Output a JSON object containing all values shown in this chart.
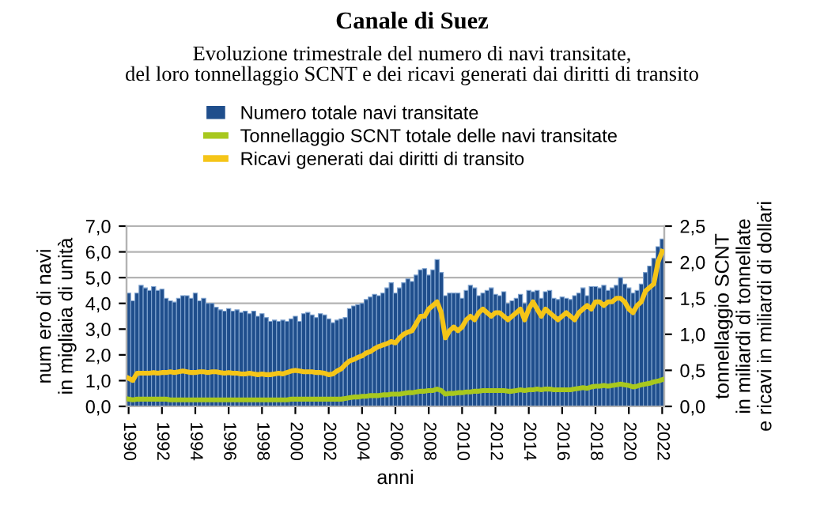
{
  "chart_data": {
    "type": "bar",
    "title": "Canale di Suez",
    "subtitle": "Evoluzione trimestrale del numero di navi transitate,\ndel loro tonnellaggio SCNT e dei ricavi generati dai diritti di transito",
    "xlabel": "anni",
    "ylabel": "num ero di navi\nin migliaia di unità",
    "y2label": "tonnellaggio SCNT\nin miliardi di tonnellate\ne ricavi in miliardi di dollari",
    "categories": [
      "1990",
      null,
      null,
      null,
      null,
      null,
      null,
      null,
      "1992",
      null,
      null,
      null,
      null,
      null,
      null,
      null,
      "1994",
      null,
      null,
      null,
      null,
      null,
      null,
      null,
      "1996",
      null,
      null,
      null,
      null,
      null,
      null,
      null,
      "1998",
      null,
      null,
      null,
      null,
      null,
      null,
      null,
      "2000",
      null,
      null,
      null,
      null,
      null,
      null,
      null,
      "2002",
      null,
      null,
      null,
      null,
      null,
      null,
      null,
      "2004",
      null,
      null,
      null,
      null,
      null,
      null,
      null,
      "2006",
      null,
      null,
      null,
      null,
      null,
      null,
      null,
      "2008",
      null,
      null,
      null,
      null,
      null,
      null,
      null,
      "2010",
      null,
      null,
      null,
      null,
      null,
      null,
      null,
      "2012",
      null,
      null,
      null,
      null,
      null,
      null,
      null,
      "2014",
      null,
      null,
      null,
      null,
      null,
      null,
      null,
      "2016",
      null,
      null,
      null,
      null,
      null,
      null,
      null,
      "2018",
      null,
      null,
      null,
      null,
      null,
      null,
      null,
      "2020",
      null,
      null,
      null,
      null,
      null,
      null,
      null,
      "2022"
    ],
    "series": [
      {
        "name": "Numero totale navi transitate",
        "color": "#1f4e8c",
        "values": [
          4.4,
          4.1,
          4.4,
          4.7,
          4.6,
          4.5,
          4.65,
          4.5,
          4.55,
          4.2,
          4.1,
          4.05,
          4.2,
          4.3,
          4.3,
          4.2,
          4.4,
          4.1,
          4.2,
          4.0,
          4.0,
          3.85,
          3.75,
          3.7,
          3.8,
          3.7,
          3.75,
          3.65,
          3.7,
          3.6,
          3.7,
          3.5,
          3.6,
          3.45,
          3.3,
          3.35,
          3.3,
          3.35,
          3.3,
          3.4,
          3.5,
          3.3,
          3.6,
          3.65,
          3.55,
          3.45,
          3.6,
          3.55,
          3.4,
          3.25,
          3.35,
          3.4,
          3.45,
          3.8,
          3.9,
          3.95,
          4.0,
          4.15,
          4.25,
          4.35,
          4.3,
          4.4,
          4.6,
          4.8,
          4.4,
          4.6,
          4.8,
          4.95,
          4.85,
          5.1,
          5.3,
          5.35,
          5.1,
          5.3,
          5.7,
          5.2,
          4.3,
          4.4,
          4.4,
          4.4,
          4.2,
          4.5,
          4.7,
          4.6,
          4.3,
          4.4,
          4.5,
          4.6,
          4.35,
          4.3,
          4.45,
          4.0,
          4.1,
          4.2,
          4.35,
          4.0,
          4.5,
          4.45,
          4.5,
          4.2,
          4.45,
          4.5,
          4.2,
          4.15,
          4.25,
          4.2,
          4.15,
          4.3,
          4.4,
          4.6,
          4.3,
          4.65,
          4.65,
          4.6,
          4.7,
          4.5,
          4.6,
          4.7,
          5.0,
          4.75,
          4.6,
          4.4,
          4.5,
          4.75,
          5.2,
          5.45,
          5.75,
          6.2,
          6.5
        ]
      },
      {
        "name": "Tonnellaggio SCNT totale delle navi transitate",
        "type": "line",
        "axis": "y2",
        "color": "#a8c81e",
        "values": [
          0.1,
          0.09,
          0.1,
          0.1,
          0.1,
          0.1,
          0.1,
          0.1,
          0.1,
          0.1,
          0.09,
          0.09,
          0.09,
          0.09,
          0.09,
          0.09,
          0.09,
          0.09,
          0.09,
          0.09,
          0.09,
          0.09,
          0.09,
          0.09,
          0.09,
          0.09,
          0.09,
          0.09,
          0.09,
          0.09,
          0.09,
          0.09,
          0.09,
          0.09,
          0.09,
          0.09,
          0.09,
          0.09,
          0.09,
          0.1,
          0.1,
          0.1,
          0.1,
          0.1,
          0.1,
          0.1,
          0.1,
          0.1,
          0.1,
          0.1,
          0.1,
          0.1,
          0.11,
          0.12,
          0.13,
          0.13,
          0.14,
          0.14,
          0.15,
          0.15,
          0.15,
          0.16,
          0.16,
          0.17,
          0.17,
          0.17,
          0.18,
          0.19,
          0.19,
          0.2,
          0.21,
          0.21,
          0.22,
          0.22,
          0.24,
          0.22,
          0.17,
          0.18,
          0.18,
          0.19,
          0.19,
          0.2,
          0.2,
          0.21,
          0.21,
          0.22,
          0.22,
          0.22,
          0.22,
          0.22,
          0.22,
          0.21,
          0.21,
          0.22,
          0.23,
          0.22,
          0.23,
          0.23,
          0.24,
          0.23,
          0.24,
          0.24,
          0.23,
          0.23,
          0.23,
          0.23,
          0.23,
          0.24,
          0.25,
          0.26,
          0.25,
          0.27,
          0.28,
          0.28,
          0.29,
          0.28,
          0.29,
          0.3,
          0.31,
          0.3,
          0.29,
          0.27,
          0.28,
          0.3,
          0.31,
          0.32,
          0.34,
          0.35,
          0.37
        ]
      },
      {
        "name": "Ricavi generati dai diritti di transito",
        "type": "line",
        "axis": "y2",
        "color": "#f5c518",
        "values": [
          0.39,
          0.36,
          0.46,
          0.46,
          0.46,
          0.46,
          0.47,
          0.46,
          0.47,
          0.47,
          0.48,
          0.47,
          0.48,
          0.49,
          0.48,
          0.47,
          0.47,
          0.48,
          0.48,
          0.47,
          0.48,
          0.48,
          0.47,
          0.46,
          0.47,
          0.46,
          0.46,
          0.45,
          0.45,
          0.46,
          0.45,
          0.44,
          0.45,
          0.44,
          0.44,
          0.45,
          0.46,
          0.45,
          0.47,
          0.49,
          0.5,
          0.49,
          0.48,
          0.48,
          0.48,
          0.47,
          0.47,
          0.46,
          0.44,
          0.45,
          0.49,
          0.52,
          0.58,
          0.63,
          0.65,
          0.68,
          0.7,
          0.74,
          0.76,
          0.8,
          0.83,
          0.85,
          0.87,
          0.9,
          0.88,
          0.95,
          1.0,
          1.03,
          1.05,
          1.15,
          1.25,
          1.25,
          1.35,
          1.4,
          1.45,
          1.3,
          0.95,
          1.05,
          1.1,
          1.05,
          1.1,
          1.2,
          1.25,
          1.2,
          1.3,
          1.35,
          1.3,
          1.25,
          1.3,
          1.3,
          1.25,
          1.2,
          1.25,
          1.3,
          1.35,
          1.2,
          1.35,
          1.45,
          1.35,
          1.25,
          1.35,
          1.3,
          1.25,
          1.2,
          1.25,
          1.3,
          1.25,
          1.2,
          1.3,
          1.35,
          1.4,
          1.35,
          1.45,
          1.45,
          1.4,
          1.45,
          1.45,
          1.5,
          1.5,
          1.45,
          1.35,
          1.3,
          1.4,
          1.45,
          1.6,
          1.65,
          1.7,
          2.0,
          2.15
        ]
      }
    ],
    "ylim": [
      0,
      7
    ],
    "yticks": [
      {
        "value": 0,
        "label": "0,0"
      },
      {
        "value": 1,
        "label": "1,0"
      },
      {
        "value": 2,
        "label": "2,0"
      },
      {
        "value": 3,
        "label": "3,0"
      },
      {
        "value": 4,
        "label": "4,0"
      },
      {
        "value": 5,
        "label": "5,0"
      },
      {
        "value": 6,
        "label": "6,0"
      },
      {
        "value": 7,
        "label": "7,0"
      }
    ],
    "y2lim": [
      0,
      2.5
    ],
    "y2ticks": [
      {
        "value": 0,
        "label": "0,0"
      },
      {
        "value": 0.5,
        "label": "0,5"
      },
      {
        "value": 1,
        "label": "1,0"
      },
      {
        "value": 1.5,
        "label": "1,5"
      },
      {
        "value": 2,
        "label": "2,0"
      },
      {
        "value": 2.5,
        "label": "2,5"
      }
    ],
    "grid": "y",
    "legend": "top"
  }
}
